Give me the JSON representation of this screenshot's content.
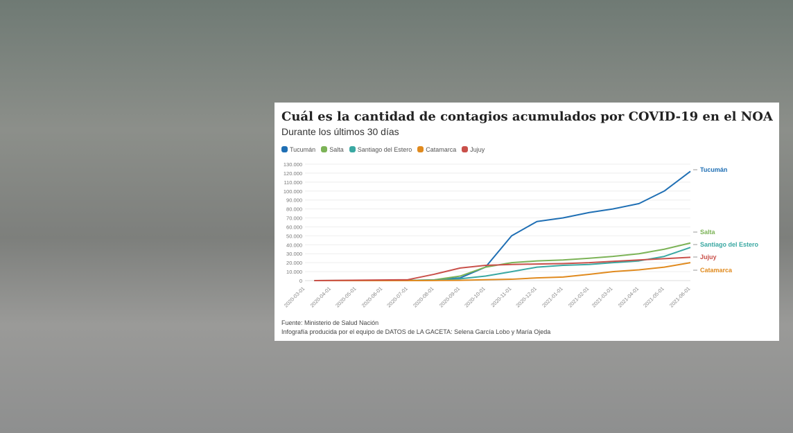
{
  "chart_data": {
    "type": "line",
    "title": "Cuál es la cantidad de contagios acumulados por COVID-19 en el NOA",
    "subtitle": "Durante los últimos 30 días",
    "x_ticks": [
      "2020-03-01",
      "2020-04-01",
      "2020-05-01",
      "2020-06-01",
      "2020-07-01",
      "2020-08-01",
      "2020-09-01",
      "2020-10-01",
      "2020-11-01",
      "2020-12-01",
      "2021-01-01",
      "2021-02-01",
      "2021-03-01",
      "2021-04-01",
      "2021-05-01",
      "2021-06-01"
    ],
    "y_ticks": [
      "0",
      "10.000",
      "20.000",
      "30.000",
      "40.000",
      "50.000",
      "60.000",
      "70.000",
      "80.000",
      "90.000",
      "100.000",
      "110.000",
      "120.000",
      "130.000"
    ],
    "ylim": [
      0,
      130000
    ],
    "grid": true,
    "legend": "top-left",
    "x": [
      "2020-03-12",
      "2020-07-01",
      "2020-08-01",
      "2020-09-01",
      "2020-10-01",
      "2020-11-01",
      "2020-12-01",
      "2021-01-01",
      "2021-02-01",
      "2021-03-01",
      "2021-04-01",
      "2021-05-01",
      "2021-06-01"
    ],
    "series": [
      {
        "name": "Tucumán",
        "color": "#1f6fb4",
        "values": [
          0,
          200,
          800,
          3000,
          15000,
          50000,
          66000,
          70000,
          76000,
          80000,
          86000,
          100000,
          122000
        ]
      },
      {
        "name": "Salta",
        "color": "#7cb357",
        "values": [
          0,
          200,
          800,
          5000,
          15000,
          20000,
          22000,
          23000,
          25000,
          27000,
          30000,
          35000,
          42000
        ]
      },
      {
        "name": "Santiago del Estero",
        "color": "#3aa8a2",
        "values": [
          0,
          100,
          400,
          2000,
          5000,
          10000,
          15000,
          17000,
          18000,
          20000,
          22000,
          27000,
          37000
        ]
      },
      {
        "name": "Catamarca",
        "color": "#e08a1e",
        "values": [
          0,
          0,
          100,
          300,
          1000,
          1500,
          3000,
          4000,
          7000,
          10000,
          12000,
          15000,
          20000
        ]
      },
      {
        "name": "Jujuy",
        "color": "#c9504a",
        "values": [
          0,
          1000,
          7000,
          14000,
          17000,
          18000,
          18500,
          19000,
          20000,
          21500,
          23000,
          24500,
          26000
        ]
      }
    ],
    "source": "Fuente: Ministerio de Salud Nación",
    "credit": "Infografía producida por el equipo de DATOS de LA GACETA: Selena García Lobo y María Ojeda"
  }
}
